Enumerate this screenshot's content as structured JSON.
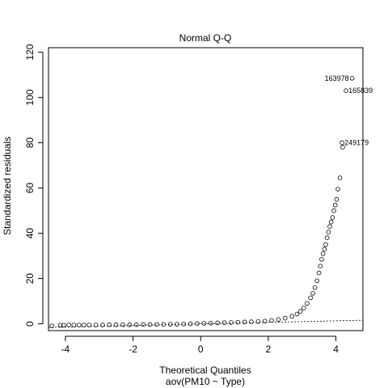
{
  "chart_data": {
    "type": "scatter",
    "title": "Normal Q-Q",
    "xlabel": "Theoretical Quantiles",
    "subtitle": "aov(PM10 ~ Type)",
    "ylabel": "Standardized residuals",
    "xlim": [
      -4.5,
      4.8
    ],
    "ylim": [
      -3,
      122
    ],
    "x_ticks": [
      -4,
      -2,
      0,
      2,
      4
    ],
    "x_tick_labels": [
      "-4",
      "-2",
      "0",
      "2",
      "4"
    ],
    "y_ticks": [
      0,
      20,
      40,
      60,
      80,
      100,
      120
    ],
    "y_tick_labels": [
      "0",
      "20",
      "40",
      "60",
      "80",
      "100",
      "120"
    ],
    "grid": false,
    "point_color": "#000000",
    "reference_line": {
      "style": "dotted",
      "x": [
        -4.5,
        4.8
      ],
      "y": [
        -1.6,
        1.6
      ]
    },
    "points": {
      "x": [
        -4.4,
        -4.15,
        -4.05,
        -3.9,
        -3.75,
        -3.6,
        -3.45,
        -3.3,
        -3.1,
        -2.9,
        -2.7,
        -2.5,
        -2.3,
        -2.1,
        -1.9,
        -1.7,
        -1.5,
        -1.3,
        -1.1,
        -0.9,
        -0.7,
        -0.5,
        -0.3,
        -0.1,
        0.1,
        0.3,
        0.5,
        0.7,
        0.9,
        1.1,
        1.3,
        1.5,
        1.7,
        1.9,
        2.1,
        2.3,
        2.5,
        2.7,
        2.85,
        2.95,
        3.05,
        3.15,
        3.25,
        3.32,
        3.38,
        3.44,
        3.5,
        3.54,
        3.58,
        3.62,
        3.66,
        3.7,
        3.74,
        3.78,
        3.82,
        3.86,
        3.9,
        3.94,
        3.98,
        4.02,
        4.06,
        4.12,
        4.2
      ],
      "y": [
        -0.9,
        -0.6,
        -0.6,
        -0.5,
        -0.5,
        -0.5,
        -0.5,
        -0.5,
        -0.5,
        -0.5,
        -0.4,
        -0.4,
        -0.4,
        -0.4,
        -0.4,
        -0.3,
        -0.3,
        -0.3,
        -0.3,
        -0.2,
        -0.2,
        -0.1,
        0.0,
        0.1,
        0.2,
        0.3,
        0.4,
        0.5,
        0.6,
        0.7,
        0.8,
        0.9,
        1.0,
        1.2,
        1.5,
        1.9,
        2.5,
        3.3,
        4.3,
        5.5,
        7.0,
        9.0,
        11.5,
        13.5,
        16.0,
        19.0,
        22.5,
        25.5,
        28.5,
        31.0,
        33.0,
        35.0,
        38.0,
        40.5,
        43.0,
        45.0,
        47.0,
        50.0,
        52.5,
        55.0,
        59.5,
        64.5,
        78.0
      ]
    },
    "labeled_points": [
      {
        "label": "163978",
        "x": 4.48,
        "y": 108.5,
        "side": "left"
      },
      {
        "label": "165839",
        "x": 4.3,
        "y": 103.0,
        "side": "right"
      },
      {
        "label": "249179",
        "x": 4.18,
        "y": 80.0,
        "side": "right"
      }
    ]
  }
}
